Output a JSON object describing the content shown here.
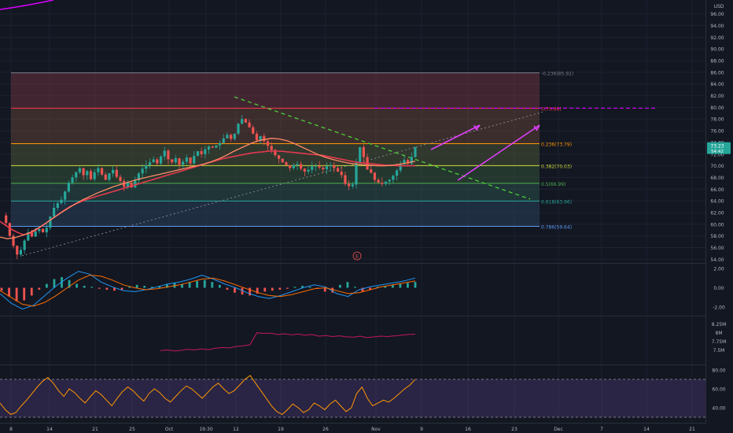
{
  "chart_data": {
    "type": "line",
    "symbol_currency": "USD",
    "background": "#131722",
    "main": {
      "ylim": [
        53.5,
        96.5
      ],
      "price_ticks": [
        54,
        56,
        58,
        60,
        62,
        64,
        66,
        68,
        70,
        72,
        74,
        76,
        78,
        80,
        82,
        84,
        86,
        88,
        90,
        92,
        94,
        96
      ],
      "last_price": "73.23",
      "countdown": "54:42",
      "fib_levels": [
        {
          "label": "-0.236(85.92)",
          "value": 85.92,
          "color": "#787b86"
        },
        {
          "label": "0(79.86)",
          "value": 79.86,
          "color": "#f23645"
        },
        {
          "label": "0.236(73.79)",
          "value": 73.79,
          "color": "#ff9800"
        },
        {
          "label": "0.382(70.03)",
          "value": 70.03,
          "color": "#cddc39"
        },
        {
          "label": "0.5(66.99)",
          "value": 66.99,
          "color": "#4caf50"
        },
        {
          "label": "0.618(63.96)",
          "value": 63.96,
          "color": "#26a69a"
        },
        {
          "label": "0.786(59.64)",
          "value": 59.64,
          "color": "#5b9cf6"
        }
      ],
      "fib_zone_fills": [
        "#7a3a44",
        "#6e4a3c",
        "#55603c",
        "#3a603e",
        "#2e5a52",
        "#2c4a66"
      ],
      "close_prices": [
        61.5,
        60.2,
        58.0,
        56.3,
        54.8,
        55.6,
        57.2,
        58.6,
        57.9,
        58.8,
        59.2,
        58.6,
        59.4,
        61.3,
        62.8,
        63.6,
        64.2,
        65.6,
        67.1,
        68.0,
        68.9,
        69.6,
        68.4,
        69.1,
        67.7,
        68.9,
        69.6,
        68.5,
        67.6,
        68.7,
        69.3,
        68.1,
        67.4,
        66.4,
        67.1,
        66.3,
        67.5,
        68.7,
        69.5,
        70.1,
        70.6,
        71.1,
        70.4,
        71.6,
        72.6,
        71.1,
        70.6,
        71.3,
        70.2,
        70.7,
        71.4,
        70.4,
        71.7,
        72.5,
        72.0,
        72.8,
        73.3,
        73.1,
        73.5,
        73.9,
        74.7,
        75.3,
        74.6,
        75.5,
        77.2,
        78.0,
        77.4,
        76.6,
        75.5,
        74.4,
        75.1,
        74.2,
        73.4,
        72.7,
        71.8,
        71.2,
        70.6,
        70.1,
        69.6,
        70.1,
        70.3,
        69.5,
        69.0,
        69.3,
        69.9,
        70.0,
        69.7,
        69.4,
        69.9,
        70.1,
        69.6,
        69.0,
        68.4,
        66.9,
        66.5,
        66.8,
        70.5,
        73.2,
        71.5,
        69.4,
        68.8,
        67.6,
        67.1,
        66.9,
        67.3,
        67.6,
        68.3,
        69.2,
        70.3,
        71.0,
        70.4,
        71.5,
        73.2
      ],
      "ma_red": [
        60.5,
        59.8,
        59.1,
        58.6,
        58.2,
        58.4,
        58.9,
        59.6,
        60.3,
        61.0,
        61.7,
        62.4,
        63.0,
        63.5,
        63.9,
        64.3,
        64.6,
        64.9,
        65.2,
        65.5,
        65.8,
        66.1,
        66.4,
        66.7,
        67.0,
        67.3,
        67.6,
        67.9,
        68.2,
        68.5,
        68.8,
        69.1,
        69.4,
        69.7,
        70.0,
        70.3,
        70.6,
        70.9,
        71.2,
        71.4,
        71.6,
        71.8,
        72.0,
        72.2,
        72.3,
        72.4,
        72.5,
        72.5,
        72.5,
        72.4,
        72.3,
        72.2,
        72.1,
        72.0,
        71.9,
        71.8,
        71.6,
        71.4,
        71.2,
        71.0,
        70.8,
        70.6,
        70.5,
        70.4,
        70.3,
        70.2,
        70.1,
        70.1,
        70.0,
        70.0,
        70.0,
        70.0
      ],
      "ma_orange": [
        57.8,
        57.5,
        57.7,
        58.1,
        58.6,
        59.3,
        60.1,
        61.0,
        61.9,
        62.7,
        63.5,
        64.2,
        64.8,
        65.4,
        65.9,
        66.4,
        66.8,
        67.2,
        67.6,
        67.9,
        68.2,
        68.5,
        68.8,
        69.1,
        69.4,
        69.7,
        70.0,
        70.3,
        70.7,
        71.2,
        71.8,
        72.5,
        73.1,
        73.7,
        74.2,
        74.5,
        74.7,
        74.6,
        74.3,
        73.8,
        73.2,
        72.6,
        72.0,
        71.5,
        71.1,
        70.8,
        70.5,
        70.3,
        70.2,
        70.1,
        70.0,
        70.0,
        70.1,
        70.3,
        70.5,
        70.8
      ]
    },
    "x_tick_labels": [
      "8",
      "14",
      "21",
      "25",
      "Oct",
      "19:30",
      "12",
      "19",
      "26",
      "Nov",
      "9",
      "16",
      "23",
      "Dec",
      "7",
      "14",
      "21"
    ],
    "macd": {
      "ylim": [
        -2.8,
        2.4
      ],
      "ticks": [
        "2.00",
        "0.00",
        "-2.00"
      ],
      "histogram": [
        -0.3,
        -0.9,
        -1.4,
        -1.3,
        -0.8,
        -0.2,
        0.4,
        0.9,
        1.1,
        0.8,
        0.4,
        0.2,
        0.1,
        -0.1,
        -0.2,
        -0.3,
        -0.2,
        0.1,
        0.3,
        0.2,
        0.1,
        0.2,
        0.4,
        0.5,
        0.4,
        0.6,
        0.7,
        0.8,
        0.6,
        0.3,
        -0.2,
        -0.5,
        -0.7,
        -0.8,
        -0.6,
        -0.4,
        -0.3,
        -0.2,
        -0.1,
        0.1,
        0.2,
        0.1,
        -0.1,
        -0.4,
        -0.5,
        0.3,
        0.6,
        0.1,
        -0.4,
        -0.2,
        0.1,
        0.2,
        0.3,
        0.4,
        0.5,
        0.6
      ],
      "macd_line": [
        -0.6,
        -1.6,
        -2.2,
        -1.8,
        -0.8,
        0.2,
        1.0,
        1.7,
        1.4,
        0.6,
        0.1,
        -0.3,
        -0.4,
        -0.2,
        0.1,
        0.4,
        0.6,
        0.9,
        1.3,
        0.9,
        0.4,
        0.0,
        -0.5,
        -0.9,
        -1.1,
        -0.8,
        -0.4,
        0.0,
        0.3,
        0.1,
        -0.6,
        -0.9,
        -0.2,
        0.1,
        0.3,
        0.5,
        0.7,
        1.0
      ],
      "signal_line": [
        -0.3,
        -1.0,
        -1.7,
        -1.9,
        -1.5,
        -0.8,
        0.0,
        0.8,
        1.3,
        1.2,
        0.8,
        0.3,
        0.0,
        -0.2,
        -0.1,
        0.1,
        0.3,
        0.6,
        0.9,
        1.0,
        0.7,
        0.3,
        -0.1,
        -0.5,
        -0.8,
        -0.9,
        -0.7,
        -0.4,
        -0.1,
        0.0,
        -0.3,
        -0.6,
        -0.5,
        -0.2,
        0.1,
        0.3,
        0.5,
        0.7
      ]
    },
    "volume": {
      "ylim": [
        7.1,
        8.45
      ],
      "ticks": [
        "8.25M",
        "8M",
        "7.75M",
        "7.5M"
      ],
      "line": [
        7.48,
        7.5,
        7.47,
        7.49,
        7.52,
        7.5,
        7.53,
        7.51,
        7.55,
        7.57,
        7.56,
        7.6,
        7.62,
        7.65,
        8.0,
        7.98,
        7.99,
        7.95,
        7.97,
        7.94,
        7.96,
        7.93,
        7.95,
        7.9,
        7.92,
        7.89,
        7.91,
        7.88,
        7.87,
        7.9,
        7.86,
        7.88,
        7.9,
        7.89,
        7.91,
        7.93,
        7.95,
        7.96
      ]
    },
    "rsi": {
      "ylim": [
        25,
        84
      ],
      "ticks": [
        "80.00",
        "60.00",
        "40.00"
      ],
      "upper": 70,
      "lower": 30,
      "line": [
        45,
        38,
        33,
        35,
        42,
        48,
        55,
        62,
        68,
        72,
        66,
        58,
        52,
        60,
        56,
        50,
        45,
        52,
        58,
        54,
        48,
        42,
        50,
        57,
        62,
        58,
        52,
        47,
        55,
        60,
        56,
        50,
        46,
        52,
        58,
        63,
        60,
        55,
        50,
        56,
        62,
        66,
        60,
        55,
        58,
        64,
        70,
        74,
        66,
        58,
        50,
        42,
        36,
        33,
        38,
        44,
        40,
        35,
        38,
        45,
        42,
        38,
        44,
        48,
        42,
        36,
        40,
        55,
        62,
        50,
        42,
        45,
        48,
        46,
        50,
        55,
        60,
        64,
        70
      ]
    }
  }
}
